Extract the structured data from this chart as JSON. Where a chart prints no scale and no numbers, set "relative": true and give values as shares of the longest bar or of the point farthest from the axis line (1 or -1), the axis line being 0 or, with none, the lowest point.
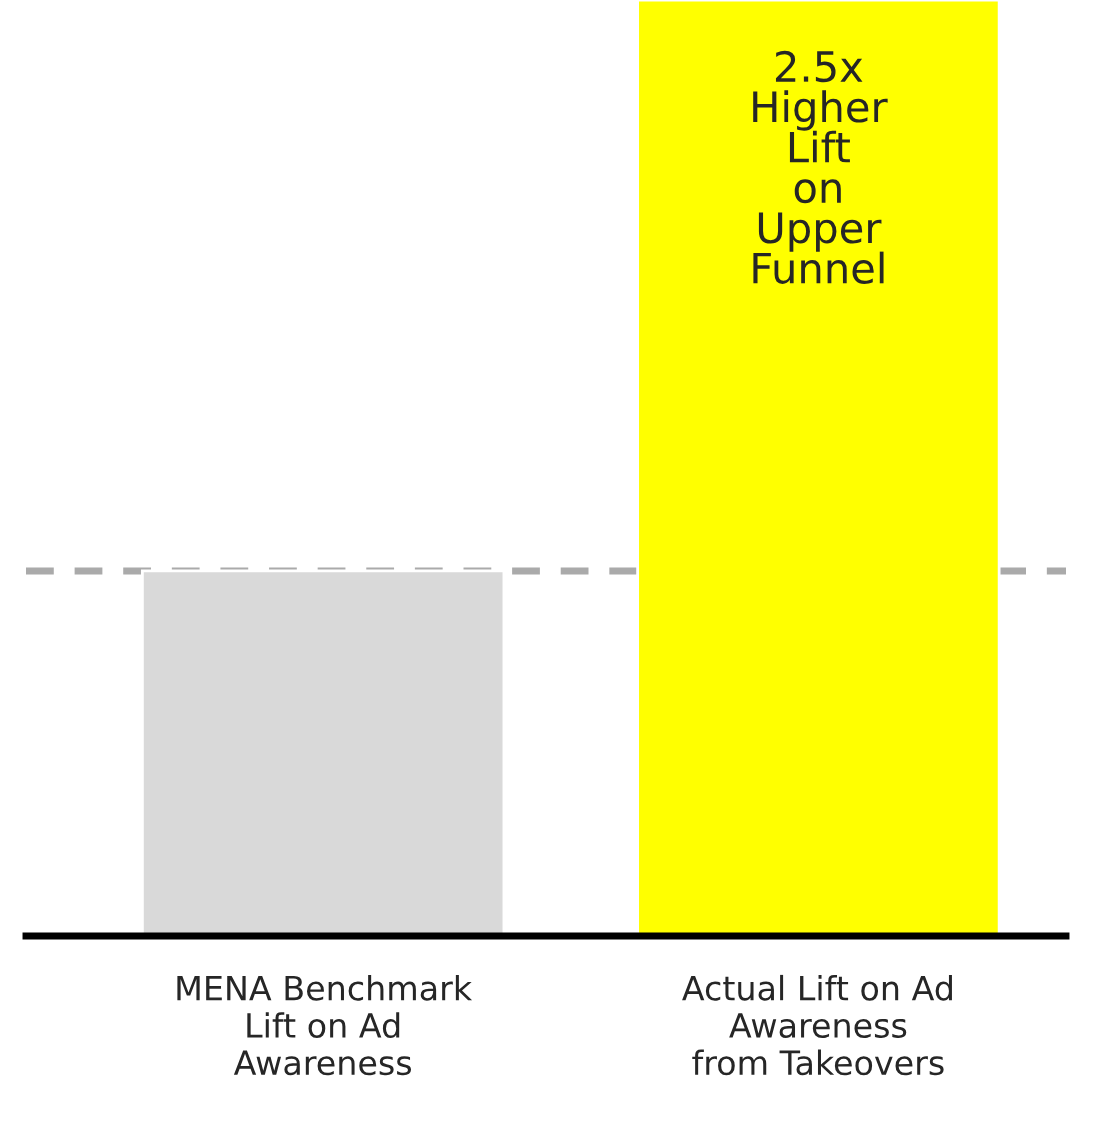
{
  "chart_data": {
    "type": "bar",
    "relative": true,
    "categories": [
      "MENA Benchmark\nLift on Ad\nAwareness",
      "Actual Lift on Ad\nAwareness\nfrom Takeovers"
    ],
    "values": [
      0.39,
      1
    ],
    "colors": [
      "#d9d9d9",
      "#ffff00"
    ],
    "ref_lines": [
      {
        "axis": "y",
        "value": 0.39,
        "color": "#aaaaaa",
        "line_style": "dashed"
      }
    ],
    "annotations": [
      {
        "text": "2.5x\nHigher\nLift\non\nUpper\nFunnel",
        "x": "Actual Lift on Ad\nAwareness\nfrom Takeovers",
        "y": 1
      }
    ],
    "grid": false,
    "legend": false
  }
}
